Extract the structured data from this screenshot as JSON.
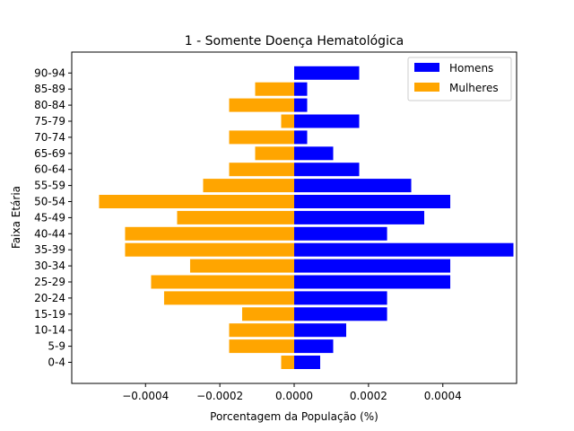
{
  "chart_data": {
    "type": "bar",
    "orientation": "horizontal",
    "title": "1 - Somente Doença Hematológica",
    "xlabel": "Porcentagem da População (%)",
    "ylabel": "Faixa Etária",
    "categories": [
      "0-4",
      "5-9",
      "10-14",
      "15-19",
      "20-24",
      "25-29",
      "30-34",
      "35-39",
      "40-44",
      "45-49",
      "50-54",
      "55-59",
      "60-64",
      "65-69",
      "70-74",
      "75-79",
      "80-84",
      "85-89",
      "90-94"
    ],
    "series": [
      {
        "name": "Homens",
        "color": "#0000ff",
        "values": [
          7e-05,
          0.000105,
          0.00014,
          0.00025,
          0.00025,
          0.00042,
          0.00042,
          0.00059,
          0.00025,
          0.00035,
          0.00042,
          0.000315,
          0.000175,
          0.000105,
          3.5e-05,
          0.000175,
          3.5e-05,
          3.5e-05,
          0.000175
        ]
      },
      {
        "name": "Mulheres",
        "color": "#ffa500",
        "values": [
          -3.5e-05,
          -0.000175,
          -0.000175,
          -0.00014,
          -0.00035,
          -0.000385,
          -0.00028,
          -0.000455,
          -0.000455,
          -0.000315,
          -0.000525,
          -0.000245,
          -0.000175,
          -0.000105,
          -0.000175,
          -3.5e-05,
          -0.000175,
          -0.000105,
          0
        ]
      }
    ],
    "xlim": [
      -0.0005985,
      0.0005985
    ],
    "xticks": [
      -0.0004,
      -0.0002,
      0.0,
      0.0002,
      0.0004
    ],
    "xtick_labels": [
      "−0.0004",
      "−0.0002",
      "0.0000",
      "0.0002",
      "0.0004"
    ],
    "grid": false,
    "legend_position": "top-right"
  }
}
